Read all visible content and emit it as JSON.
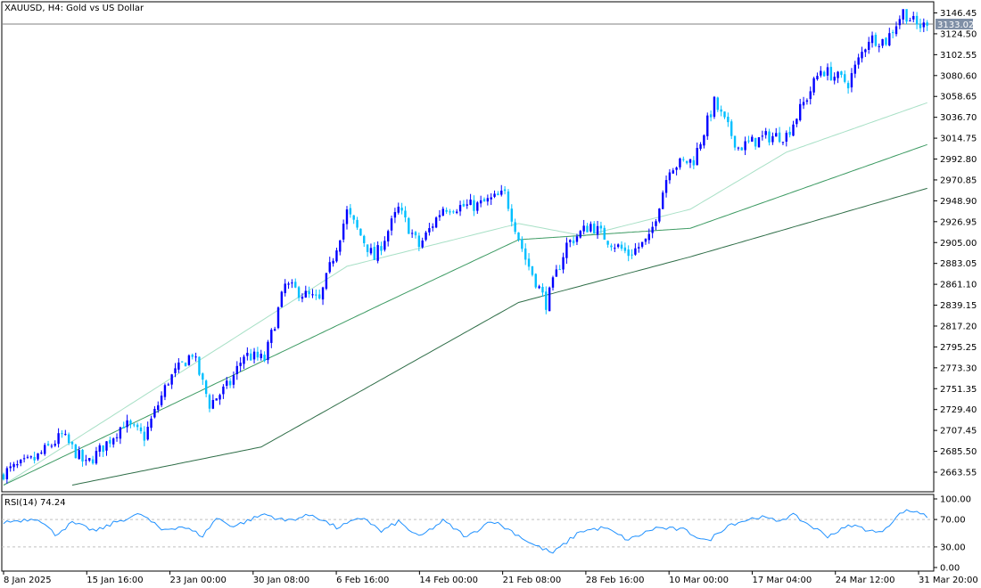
{
  "header": {
    "symbol_title": "XAUUSD, H4:  Gold vs US Dollar"
  },
  "rsi_panel": {
    "label": "RSI(14) 74.24"
  },
  "colors": {
    "bull": "#0000ff",
    "bear": "#00bfff",
    "ma_fast": "#a8e0c6",
    "ma_mid": "#3c9a62",
    "ma_slow": "#2f6e48",
    "rsi": "#1e90ff",
    "grid_level": "#c0c0c0",
    "price_tag": "#7f8fa6"
  },
  "chart_data": [
    {
      "type": "line",
      "title": "XAUUSD, H4:  Gold vs US Dollar",
      "x_tick_labels": [
        "8 Jan 2025",
        "15 Jan 16:00",
        "23 Jan 00:00",
        "30 Jan 08:00",
        "6 Feb 16:00",
        "14 Feb 00:00",
        "21 Feb 08:00",
        "28 Feb 16:00",
        "10 Mar 00:00",
        "17 Mar 04:00",
        "24 Mar 12:00",
        "31 Mar 20:00"
      ],
      "y_tick_labels": [
        "3146.45",
        "3124.50",
        "3102.55",
        "3080.60",
        "3058.65",
        "3036.70",
        "3014.75",
        "2992.80",
        "2970.85",
        "2948.90",
        "2926.95",
        "2905.00",
        "2883.05",
        "2861.10",
        "2839.15",
        "2817.20",
        "2795.25",
        "2773.30",
        "2751.35",
        "2729.40",
        "2707.45",
        "2685.50",
        "2663.55"
      ],
      "ylim": [
        2650,
        3158
      ],
      "current_price": "3133.02",
      "anchors": {
        "x": [
          0,
          9,
          17,
          24,
          31,
          35,
          41,
          48,
          55,
          60,
          66,
          70,
          76,
          82,
          92,
          100,
          108,
          115,
          121,
          128,
          138,
          146,
          152,
          158,
          164,
          171,
          176,
          182,
          188,
          194,
          201,
          207,
          214,
          222,
          228,
          234,
          238,
          246,
          252,
          257,
          262,
          266,
          269
        ],
        "close": [
          2663,
          2677,
          2702,
          2671,
          2698,
          2715,
          2701,
          2760,
          2789,
          2735,
          2757,
          2787,
          2782,
          2860,
          2843,
          2937,
          2888,
          2940,
          2901,
          2942,
          2944,
          2956,
          2888,
          2841,
          2903,
          2924,
          2908,
          2893,
          2908,
          2985,
          2992,
          3052,
          3005,
          3016,
          3018,
          3058,
          3087,
          3073,
          3120,
          3117,
          3148,
          3133,
          3133
        ]
      },
      "series": [
        {
          "name": "",
          "kind": "moving-average",
          "values_at_x": [
            [
              0,
              2650
            ],
            [
              100,
              2880
            ],
            [
              150,
              2925
            ],
            [
              169,
              2912
            ],
            [
              200,
              2940
            ],
            [
              228,
              3000
            ],
            [
              269,
              3052
            ]
          ]
        },
        {
          "name": "",
          "kind": "moving-average",
          "values_at_x": [
            [
              0,
              2650
            ],
            [
              110,
              2840
            ],
            [
              150,
              2908
            ],
            [
              200,
              2920
            ],
            [
              269,
              3008
            ]
          ]
        },
        {
          "name": "",
          "kind": "moving-average",
          "values_at_x": [
            [
              20,
              2650
            ],
            [
              75,
              2690
            ],
            [
              150,
              2842
            ],
            [
              200,
              2890
            ],
            [
              269,
              2962
            ]
          ]
        }
      ]
    },
    {
      "type": "line",
      "title": "RSI(14) 74.24",
      "y_tick_labels": [
        "100.00",
        "70.00",
        "30.00",
        "0.00"
      ],
      "ylim": [
        0,
        100
      ],
      "levels": [
        70,
        30
      ],
      "anchors": {
        "x": [
          0,
          10,
          15,
          20,
          27,
          33,
          40,
          46,
          52,
          58,
          62,
          67,
          76,
          82,
          90,
          97,
          105,
          110,
          115,
          121,
          128,
          135,
          142,
          148,
          154,
          160,
          168,
          175,
          182,
          190,
          198,
          205,
          211,
          220,
          225,
          230,
          240,
          247,
          255,
          259,
          262,
          266,
          269
        ],
        "values": [
          66,
          72,
          48,
          65,
          53,
          67,
          78,
          55,
          60,
          46,
          72,
          60,
          78,
          68,
          77,
          58,
          73,
          52,
          67,
          44,
          68,
          44,
          69,
          53,
          34,
          21,
          53,
          58,
          40,
          58,
          55,
          38,
          62,
          74,
          68,
          76,
          46,
          62,
          50,
          68,
          82,
          82,
          74
        ]
      }
    }
  ]
}
